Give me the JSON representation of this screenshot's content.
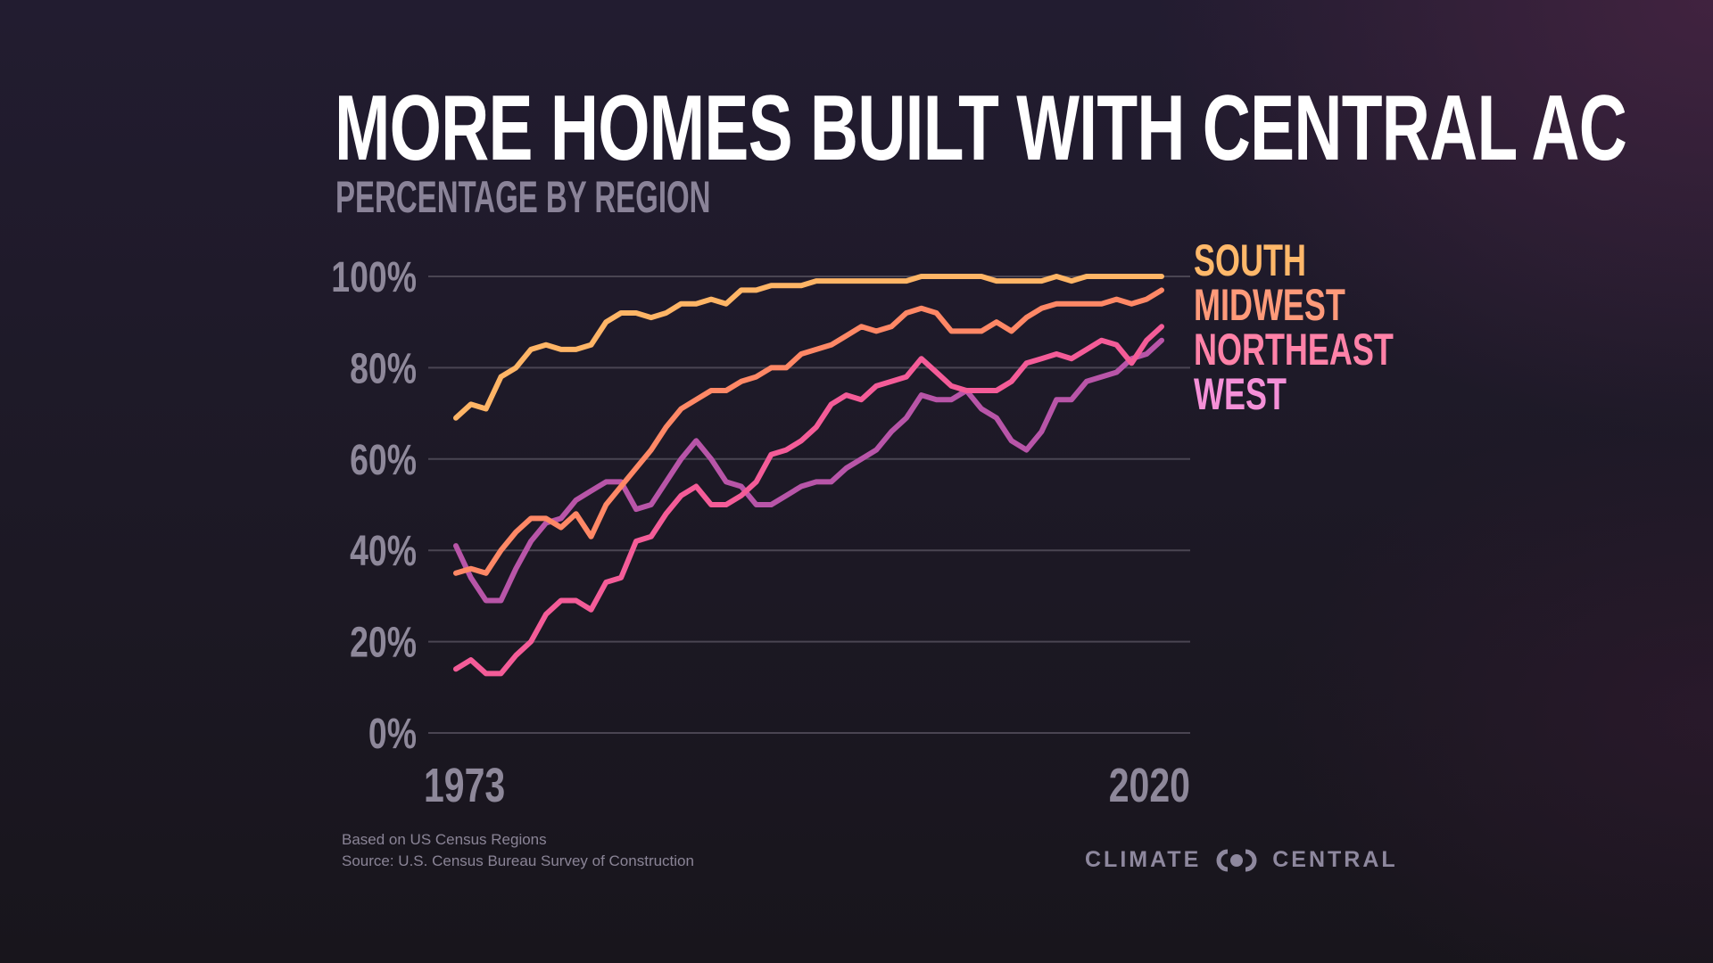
{
  "header": {
    "title": "MORE HOMES BUILT WITH CENTRAL AC",
    "subtitle": "PERCENTAGE BY REGION"
  },
  "footer": {
    "note": "Based on US Census Regions",
    "source": "Source:  U.S. Census Bureau Survey of Construction",
    "brand_left": "CLIMATE",
    "brand_right": "CENTRAL",
    "brand_icon": "climate-central-logo-icon"
  },
  "chart_data": {
    "type": "line",
    "title": "MORE HOMES BUILT WITH CENTRAL AC",
    "subtitle": "PERCENTAGE BY REGION",
    "xlabel": "",
    "ylabel": "",
    "x_start": 1973,
    "x_end": 2020,
    "x_tick_labels": [
      "1973",
      "2020"
    ],
    "ylim": [
      0,
      100
    ],
    "y_ticks": [
      0,
      20,
      40,
      60,
      80,
      100
    ],
    "y_tick_labels": [
      "0%",
      "20%",
      "40%",
      "60%",
      "80%",
      "100%"
    ],
    "grid": true,
    "legend_position": "right",
    "x": [
      1973,
      1974,
      1975,
      1976,
      1977,
      1978,
      1979,
      1980,
      1981,
      1982,
      1983,
      1984,
      1985,
      1986,
      1987,
      1988,
      1989,
      1990,
      1991,
      1992,
      1993,
      1994,
      1995,
      1996,
      1997,
      1998,
      1999,
      2000,
      2001,
      2002,
      2003,
      2004,
      2005,
      2006,
      2007,
      2008,
      2009,
      2010,
      2011,
      2012,
      2013,
      2014,
      2015,
      2016,
      2017,
      2018,
      2019,
      2020
    ],
    "series": [
      {
        "name": "SOUTH",
        "color": "#ffb566",
        "legend_color": "#ffb86a",
        "values": [
          69,
          72,
          71,
          78,
          80,
          84,
          85,
          84,
          84,
          85,
          90,
          92,
          92,
          91,
          92,
          94,
          94,
          95,
          94,
          97,
          97,
          98,
          98,
          98,
          99,
          99,
          99,
          99,
          99,
          99,
          99,
          100,
          100,
          100,
          100,
          100,
          99,
          99,
          99,
          99,
          100,
          99,
          100,
          100,
          100,
          100,
          100,
          100
        ]
      },
      {
        "name": "MIDWEST",
        "color": "#ff8866",
        "legend_color": "#ff9a7a",
        "values": [
          35,
          36,
          35,
          40,
          44,
          47,
          47,
          45,
          48,
          43,
          50,
          54,
          58,
          62,
          67,
          71,
          73,
          75,
          75,
          77,
          78,
          80,
          80,
          83,
          84,
          85,
          87,
          89,
          88,
          89,
          92,
          93,
          92,
          88,
          88,
          88,
          90,
          88,
          91,
          93,
          94,
          94,
          94,
          94,
          95,
          94,
          95,
          97
        ]
      },
      {
        "name": "NORTHEAST",
        "color": "#f45c98",
        "legend_color": "#ff82a8",
        "values": [
          14,
          16,
          13,
          13,
          17,
          20,
          26,
          29,
          29,
          27,
          33,
          34,
          42,
          43,
          48,
          52,
          54,
          50,
          50,
          52,
          55,
          61,
          62,
          64,
          67,
          72,
          74,
          73,
          76,
          77,
          78,
          82,
          79,
          76,
          75,
          75,
          75,
          77,
          81,
          82,
          83,
          82,
          84,
          86,
          85,
          81,
          86,
          89
        ]
      },
      {
        "name": "WEST",
        "color": "#b855a8",
        "legend_color": "#f590d8",
        "values": [
          41,
          34,
          29,
          29,
          36,
          42,
          46,
          47,
          51,
          53,
          55,
          55,
          49,
          50,
          55,
          60,
          64,
          60,
          55,
          54,
          50,
          50,
          52,
          54,
          55,
          55,
          58,
          60,
          62,
          66,
          69,
          74,
          73,
          73,
          75,
          71,
          69,
          64,
          62,
          66,
          73,
          73,
          77,
          78,
          79,
          82,
          83,
          86
        ]
      }
    ]
  }
}
